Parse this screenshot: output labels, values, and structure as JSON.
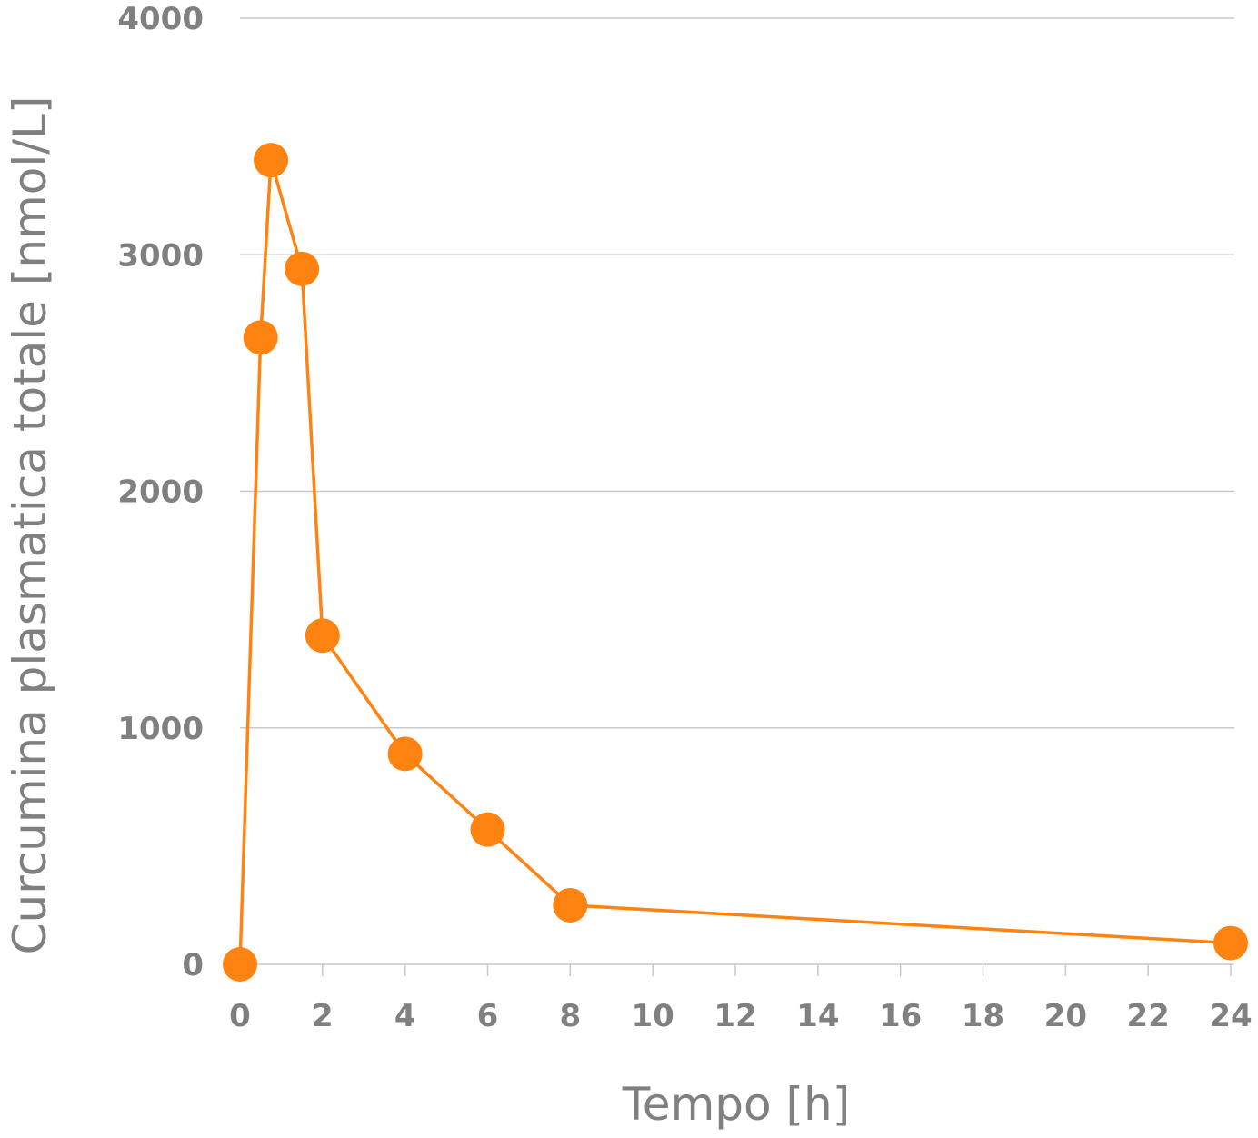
{
  "chart_data": {
    "type": "line",
    "title": "",
    "xlabel": "Tempo [h]",
    "ylabel": "Curcumina plasmatica totale  [nmol/L]",
    "xlim": [
      0,
      24
    ],
    "ylim": [
      0,
      4000
    ],
    "x_ticks": [
      0,
      2,
      4,
      6,
      8,
      10,
      12,
      14,
      16,
      18,
      20,
      22,
      24
    ],
    "y_ticks": [
      0,
      1000,
      2000,
      3000,
      4000
    ],
    "grid": "horizontal",
    "legend": "none",
    "series": [
      {
        "color": "#ff8311",
        "x": [
          0,
          0.5,
          0.75,
          1.5,
          2,
          4,
          6,
          8,
          24
        ],
        "y": [
          0,
          2650,
          3400,
          2940,
          1390,
          890,
          570,
          250,
          90
        ]
      }
    ]
  }
}
